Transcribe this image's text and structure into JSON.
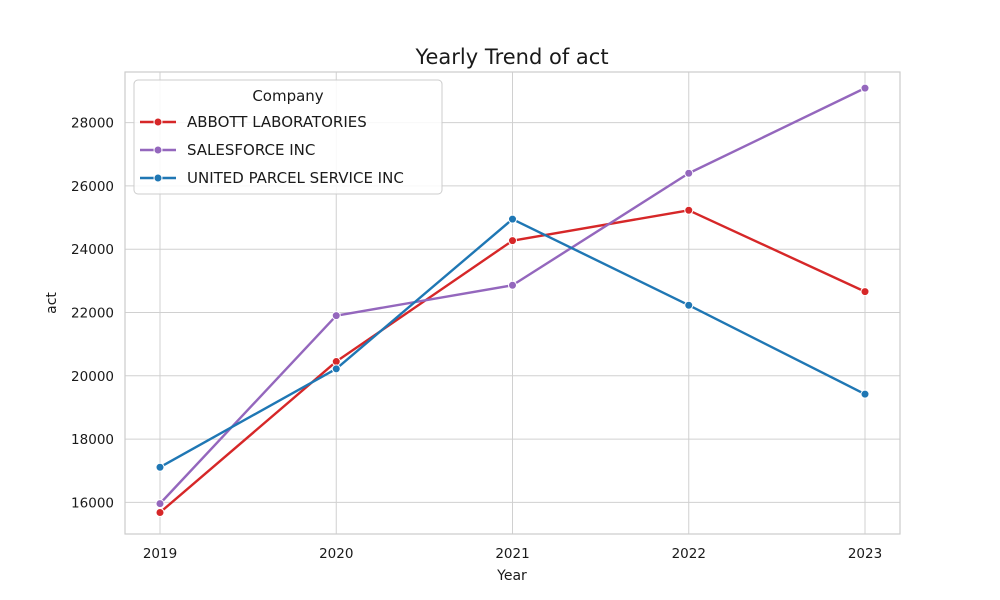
{
  "chart_data": {
    "type": "line",
    "title": "Yearly Trend of act",
    "xlabel": "Year",
    "ylabel": "act",
    "x": [
      "2019",
      "2020",
      "2021",
      "2022",
      "2023"
    ],
    "ylim": [
      15000,
      29600
    ],
    "yticks": [
      "16000",
      "18000",
      "20000",
      "22000",
      "24000",
      "26000",
      "28000"
    ],
    "grid": true,
    "legend": {
      "title": "Company",
      "position": "top-left"
    },
    "series": [
      {
        "name": "ABBOTT LABORATORIES",
        "color": "#d62728",
        "values": [
          15680,
          20450,
          24270,
          25230,
          22660
        ]
      },
      {
        "name": "SALESFORCE INC",
        "color": "#9467bd",
        "values": [
          15960,
          21900,
          22860,
          26400,
          29090
        ]
      },
      {
        "name": "UNITED PARCEL SERVICE INC",
        "color": "#1f77b4",
        "values": [
          17110,
          20220,
          24950,
          22230,
          19420
        ]
      }
    ]
  }
}
